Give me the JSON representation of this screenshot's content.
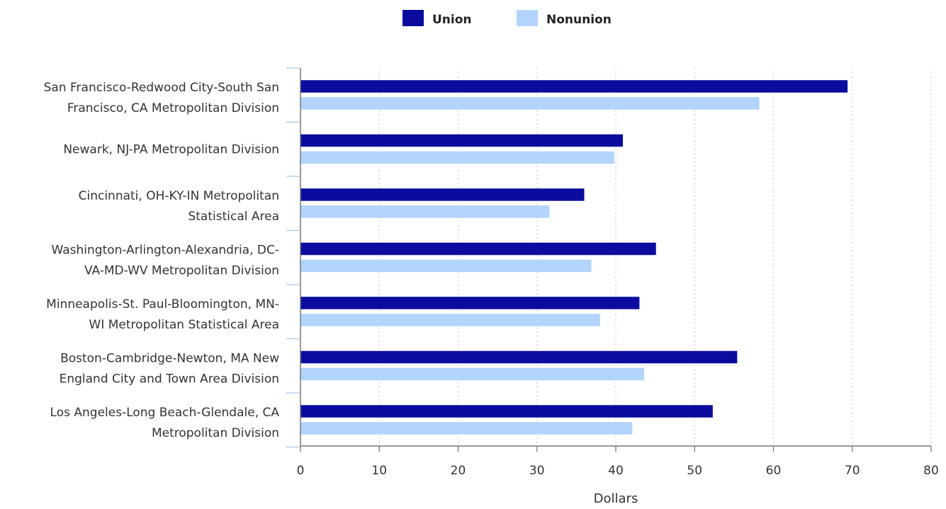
{
  "chart_data": {
    "type": "bar",
    "orientation": "horizontal",
    "xlabel": "Dollars",
    "xlim": [
      0,
      80
    ],
    "xticks": [
      0,
      10,
      20,
      30,
      40,
      50,
      60,
      70,
      80
    ],
    "grid": "vertical dotted",
    "legend_position": "top-center",
    "categories": [
      [
        "San Francisco-Redwood City-South San",
        "Francisco, CA Metropolitan Division"
      ],
      [
        "Newark, NJ-PA Metropolitan Division"
      ],
      [
        "Cincinnati, OH-KY-IN Metropolitan",
        "Statistical Area"
      ],
      [
        "Washington-Arlington-Alexandria, DC-",
        "VA-MD-WV Metropolitan Division"
      ],
      [
        "Minneapolis-St. Paul-Bloomington, MN-",
        "WI Metropolitan Statistical Area"
      ],
      [
        "Boston-Cambridge-Newton, MA New",
        "England City and Town Area Division"
      ],
      [
        "Los Angeles-Long Beach-Glendale, CA",
        "Metropolitan Division"
      ]
    ],
    "series": [
      {
        "name": "Union",
        "color": "#0b0c9e",
        "values": [
          69.4,
          40.9,
          36.0,
          45.1,
          43.0,
          55.4,
          52.3
        ]
      },
      {
        "name": "Nonunion",
        "color": "#b3d4fc",
        "values": [
          58.2,
          39.8,
          31.6,
          36.9,
          38.0,
          43.6,
          42.1
        ]
      }
    ]
  }
}
